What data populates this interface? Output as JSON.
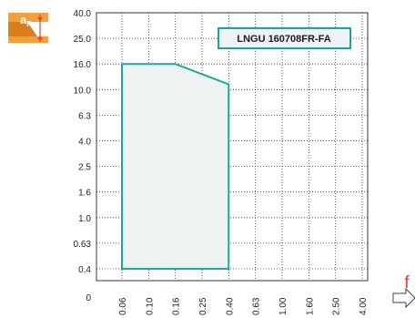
{
  "chart_data": {
    "type": "area",
    "title": "LNGU 160708FR-FA",
    "x_axis": {
      "label": "f",
      "ticks": [
        "0.06",
        "0.10",
        "0.16",
        "0.25",
        "0.40",
        "0.63",
        "1.00",
        "1.60",
        "2.50",
        "4.00"
      ]
    },
    "y_axis": {
      "label": "aP",
      "ticks": [
        "0",
        "0.4",
        "0.63",
        "1.0",
        "1.6",
        "2.5",
        "4.0",
        "6.3",
        "10.0",
        "16.0",
        "25.0",
        "40.0"
      ]
    },
    "grid": true,
    "region": {
      "points": [
        {
          "x": "0.06",
          "y": 0.4
        },
        {
          "x": "0.06",
          "y": 16.0
        },
        {
          "x": "0.16",
          "y": 16.0
        },
        {
          "x": "0.40",
          "y": 11.0
        },
        {
          "x": "0.40",
          "y": 0.4
        }
      ],
      "fill_color": "#eef2f2",
      "stroke_color": "#19a89b"
    },
    "colors": {
      "accent": "#e8412c",
      "icon_body": "#f2a03d",
      "grid": "#333333"
    }
  },
  "icons": {
    "depth_icon": "depth-of-cut-insert-icon",
    "arrow_icon": "outline-right-arrow-icon"
  },
  "icon_label": {
    "main": "a",
    "sub": "P"
  }
}
